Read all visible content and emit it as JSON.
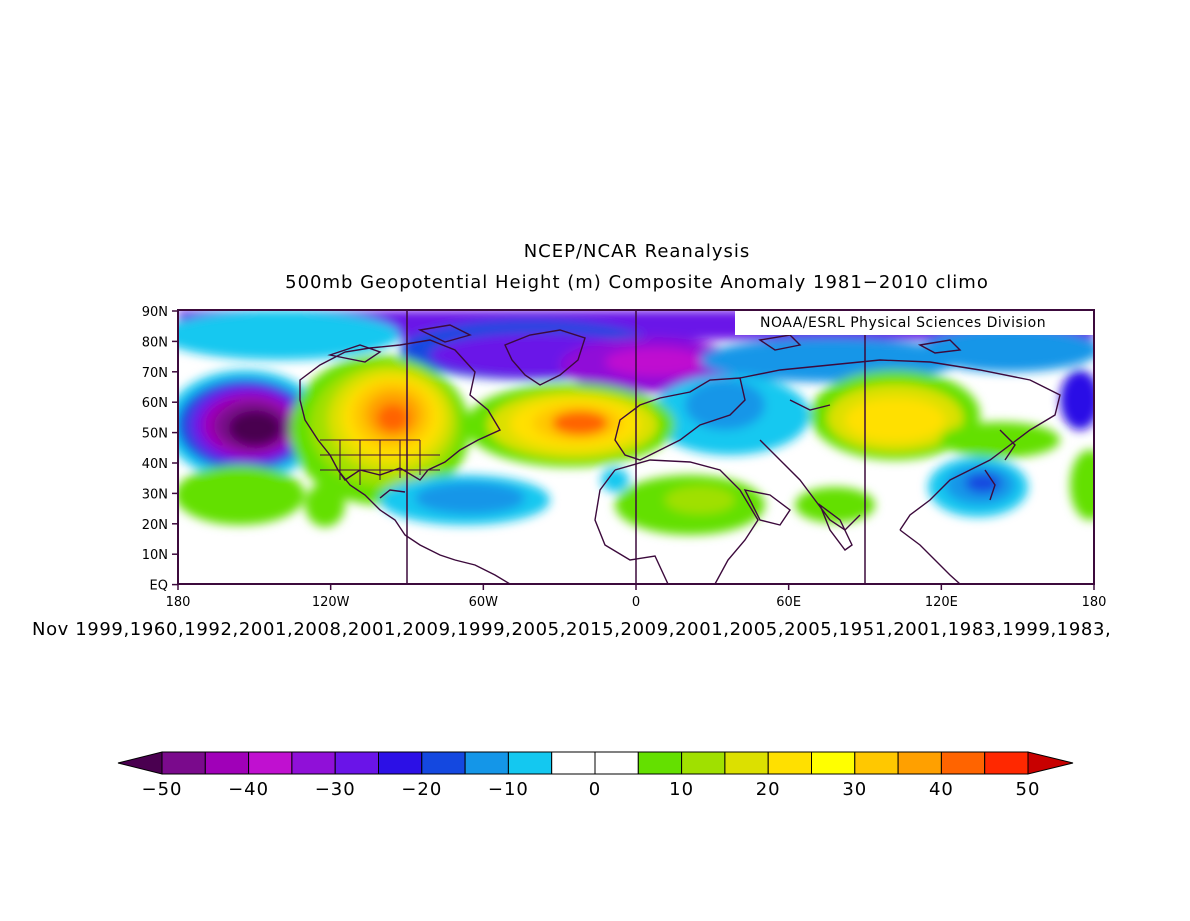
{
  "header": {
    "title": "NCEP/NCAR Reanalysis",
    "subtitle": "500mb Geopotential Height (m) Composite Anomaly 1981−2010 climo"
  },
  "map": {
    "credit": "NOAA/ESRL Physical Sciences Division",
    "lat_labels": [
      "90N",
      "80N",
      "70N",
      "60N",
      "50N",
      "40N",
      "30N",
      "20N",
      "10N",
      "EQ"
    ],
    "lon_labels": [
      "180",
      "120W",
      "60W",
      "0",
      "60E",
      "120E",
      "180"
    ],
    "vertical_meridians": [
      "-90",
      "0",
      "90"
    ],
    "projection": "cylindrical equidistant, 180W–180E, EQ–90N"
  },
  "caption": "Nov 1999,1960,1992,2001,2008,2001,2009,1999,2005,2015,2009,2001,2005,2005,1951,2001,1983,1999,1983,",
  "legend": {
    "labels": [
      "−50",
      "−40",
      "−30",
      "−20",
      "−10",
      "0",
      "10",
      "20",
      "30",
      "40",
      "50"
    ],
    "colors": [
      "#4a0050",
      "#7a0a8c",
      "#a000b8",
      "#c010d0",
      "#9010d8",
      "#6a14e8",
      "#2c10e6",
      "#1448e0",
      "#1496e8",
      "#14c8f0",
      "#ffffff",
      "#ffffff",
      "#64e000",
      "#a0e000",
      "#dce000",
      "#ffe000",
      "#ffff00",
      "#ffc800",
      "#ffa000",
      "#ff6400",
      "#ff2800",
      "#c80000"
    ]
  },
  "anomaly_centers": [
    {
      "name": "NE Pacific low",
      "lon": -150,
      "lat": 50,
      "value": -55
    },
    {
      "name": "North America ridge",
      "lon": -100,
      "lat": 55,
      "value": 42
    },
    {
      "name": "North Atlantic ridge",
      "lon": -20,
      "lat": 53,
      "value": 38
    },
    {
      "name": "Arctic low",
      "lon": 5,
      "lat": 72,
      "value": -32
    },
    {
      "name": "Siberia ridge",
      "lon": 100,
      "lat": 52,
      "value": 30
    },
    {
      "name": "NW Pacific low",
      "lon": 128,
      "lat": 33,
      "value": -18
    },
    {
      "name": "Subtropical Atlantic low",
      "lon": -48,
      "lat": 30,
      "value": -14
    },
    {
      "name": "Africa ridge",
      "lon": 15,
      "lat": 25,
      "value": 12
    }
  ]
}
